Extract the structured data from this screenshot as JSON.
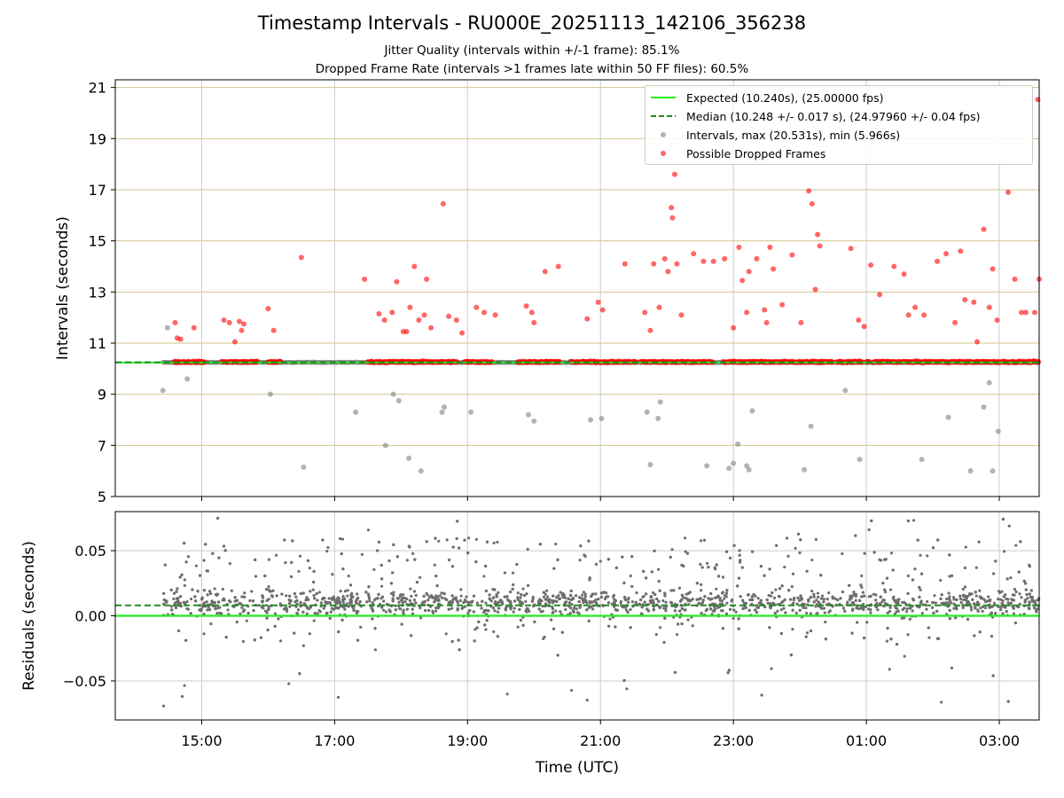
{
  "header": {
    "title": "Timestamp Intervals - RU000E_20251113_142106_356238",
    "subtitle_1": "Jitter Quality (intervals within +/-1 frame): 85.1%",
    "subtitle_2": "Dropped Frame Rate (intervals >1 frames late within 50 FF files): 60.5%"
  },
  "colors": {
    "expected": "#22ee22",
    "median": "#228b22",
    "intervals": "#808080",
    "dropped": "#ff0000",
    "gridline_top": "#d4c48a",
    "gridline": "#cccccc"
  },
  "chart_data": [
    {
      "type": "scatter",
      "panel": "intervals",
      "ylabel": "Intervals (seconds)",
      "xlabel": "",
      "ylim": [
        5,
        21.3
      ],
      "xlim_hours_utc": [
        13.7,
        27.6
      ],
      "yticks": [
        5,
        7,
        9,
        11,
        13,
        15,
        17,
        19,
        21
      ],
      "grid": true,
      "legend_position": "top-right",
      "legend": [
        {
          "key": "expected",
          "label": "Expected (10.240s), (25.00000 fps)",
          "style": "solid-line"
        },
        {
          "key": "median",
          "label": "Median (10.248 +/- 0.017 s), (24.97960 +/- 0.04 fps)",
          "style": "dashed-line"
        },
        {
          "key": "intervals",
          "label": "Intervals, max (20.531s), min (5.966s)",
          "style": "gray-marker"
        },
        {
          "key": "dropped",
          "label": "Possible Dropped Frames",
          "style": "red-marker"
        }
      ],
      "expected_interval": 10.24,
      "median_interval": 10.248,
      "series": [
        {
          "name": "Possible Dropped Frames",
          "x": [
            "14:36",
            "14:38",
            "14:41",
            "14:53",
            "15:20",
            "15:25",
            "15:30",
            "15:34",
            "15:38",
            "15:36",
            "16:00",
            "16:05",
            "16:30",
            "17:27",
            "17:40",
            "17:45",
            "17:52",
            "17:56",
            "18:02",
            "18:05",
            "18:08",
            "18:12",
            "18:16",
            "18:21",
            "18:23",
            "18:27",
            "18:38",
            "18:43",
            "18:50",
            "18:55",
            "19:08",
            "19:15",
            "19:25",
            "19:53",
            "19:58",
            "20:00",
            "20:10",
            "20:22",
            "20:48",
            "20:58",
            "21:02",
            "21:22",
            "21:40",
            "21:45",
            "21:48",
            "21:53",
            "21:58",
            "22:01",
            "22:04",
            "22:05",
            "22:07",
            "22:09",
            "22:13",
            "22:24",
            "22:33",
            "22:42",
            "22:52",
            "23:00",
            "23:05",
            "23:08",
            "23:12",
            "23:14",
            "23:21",
            "23:28",
            "23:30",
            "23:33",
            "23:36",
            "23:44",
            "23:53",
            "24:01",
            "24:08",
            "24:11",
            "24:14",
            "24:16",
            "24:18",
            "24:46",
            "24:53",
            "24:58",
            "25:04",
            "25:12",
            "25:25",
            "25:34",
            "25:38",
            "25:44",
            "25:52",
            "26:04",
            "26:12",
            "26:20",
            "26:25",
            "26:29",
            "26:37",
            "26:40",
            "26:46",
            "26:51",
            "26:54",
            "26:58",
            "27:08",
            "27:14",
            "27:20",
            "27:24",
            "27:32",
            "27:36"
          ],
          "y": [
            11.8,
            11.2,
            11.15,
            11.6,
            11.9,
            11.8,
            11.05,
            11.85,
            11.75,
            11.5,
            12.35,
            11.5,
            14.35,
            13.5,
            12.15,
            11.9,
            12.2,
            13.4,
            11.45,
            11.45,
            12.4,
            14.0,
            11.9,
            12.1,
            13.5,
            11.6,
            16.45,
            12.05,
            11.9,
            11.4,
            12.4,
            12.2,
            12.1,
            12.45,
            12.2,
            11.8,
            13.8,
            14.0,
            11.95,
            12.6,
            12.3,
            14.1,
            12.2,
            11.5,
            14.1,
            12.4,
            14.3,
            13.8,
            16.3,
            15.9,
            17.6,
            14.1,
            12.1,
            14.5,
            14.2,
            14.2,
            14.3,
            11.6,
            14.75,
            13.45,
            12.2,
            13.8,
            14.3,
            12.3,
            11.8,
            14.75,
            13.9,
            12.5,
            14.45,
            11.8,
            16.95,
            16.45,
            13.1,
            15.25,
            14.8,
            14.7,
            11.9,
            11.65,
            14.05,
            12.9,
            14.0,
            13.7,
            12.1,
            12.4,
            12.1,
            14.2,
            14.5,
            11.8,
            14.6,
            12.7,
            12.6,
            11.05,
            15.45,
            12.4,
            13.9,
            11.9,
            16.9,
            13.5,
            12.2,
            12.2,
            12.2,
            13.5
          ]
        },
        {
          "name": "Intervals (outliers below)",
          "x": [
            "14:25",
            "14:29",
            "14:47",
            "16:02",
            "16:32",
            "17:19",
            "17:46",
            "17:53",
            "17:58",
            "18:07",
            "18:18",
            "18:37",
            "18:39",
            "19:03",
            "19:55",
            "20:00",
            "20:51",
            "21:01",
            "21:42",
            "21:45",
            "21:52",
            "21:54",
            "22:36",
            "22:56",
            "23:00",
            "23:04",
            "23:12",
            "23:14",
            "23:17",
            "24:04",
            "24:10",
            "24:41",
            "24:54",
            "25:50",
            "26:14",
            "26:34",
            "26:46",
            "26:51",
            "26:54",
            "26:59"
          ],
          "y": [
            9.15,
            11.6,
            9.6,
            9.0,
            6.15,
            8.3,
            7.0,
            9.0,
            8.75,
            6.5,
            6.0,
            8.3,
            8.5,
            8.3,
            8.2,
            7.95,
            8.0,
            8.05,
            8.3,
            6.25,
            8.05,
            8.7,
            6.2,
            6.1,
            6.3,
            7.05,
            6.2,
            6.05,
            8.35,
            6.05,
            7.75,
            9.15,
            6.45,
            6.45,
            8.1,
            6.0,
            8.5,
            9.45,
            6.0,
            7.55
          ]
        }
      ]
    },
    {
      "type": "scatter",
      "panel": "residuals",
      "ylabel": "Residuals (seconds)",
      "xlabel": "Time (UTC)",
      "ylim": [
        -0.08,
        0.08
      ],
      "yticks": [
        -0.05,
        0.0,
        0.05
      ],
      "ytick_labels": [
        "−0.05",
        "0.00",
        "0.05"
      ],
      "xticks": [
        "15:00",
        "17:00",
        "19:00",
        "21:00",
        "23:00",
        "01:00",
        "03:00"
      ],
      "grid": true,
      "expected_residual": 0.0,
      "median_residual": 0.008,
      "residual_core_range": [
        -0.01,
        0.03
      ],
      "residual_spread_range": [
        -0.07,
        0.075
      ]
    }
  ]
}
